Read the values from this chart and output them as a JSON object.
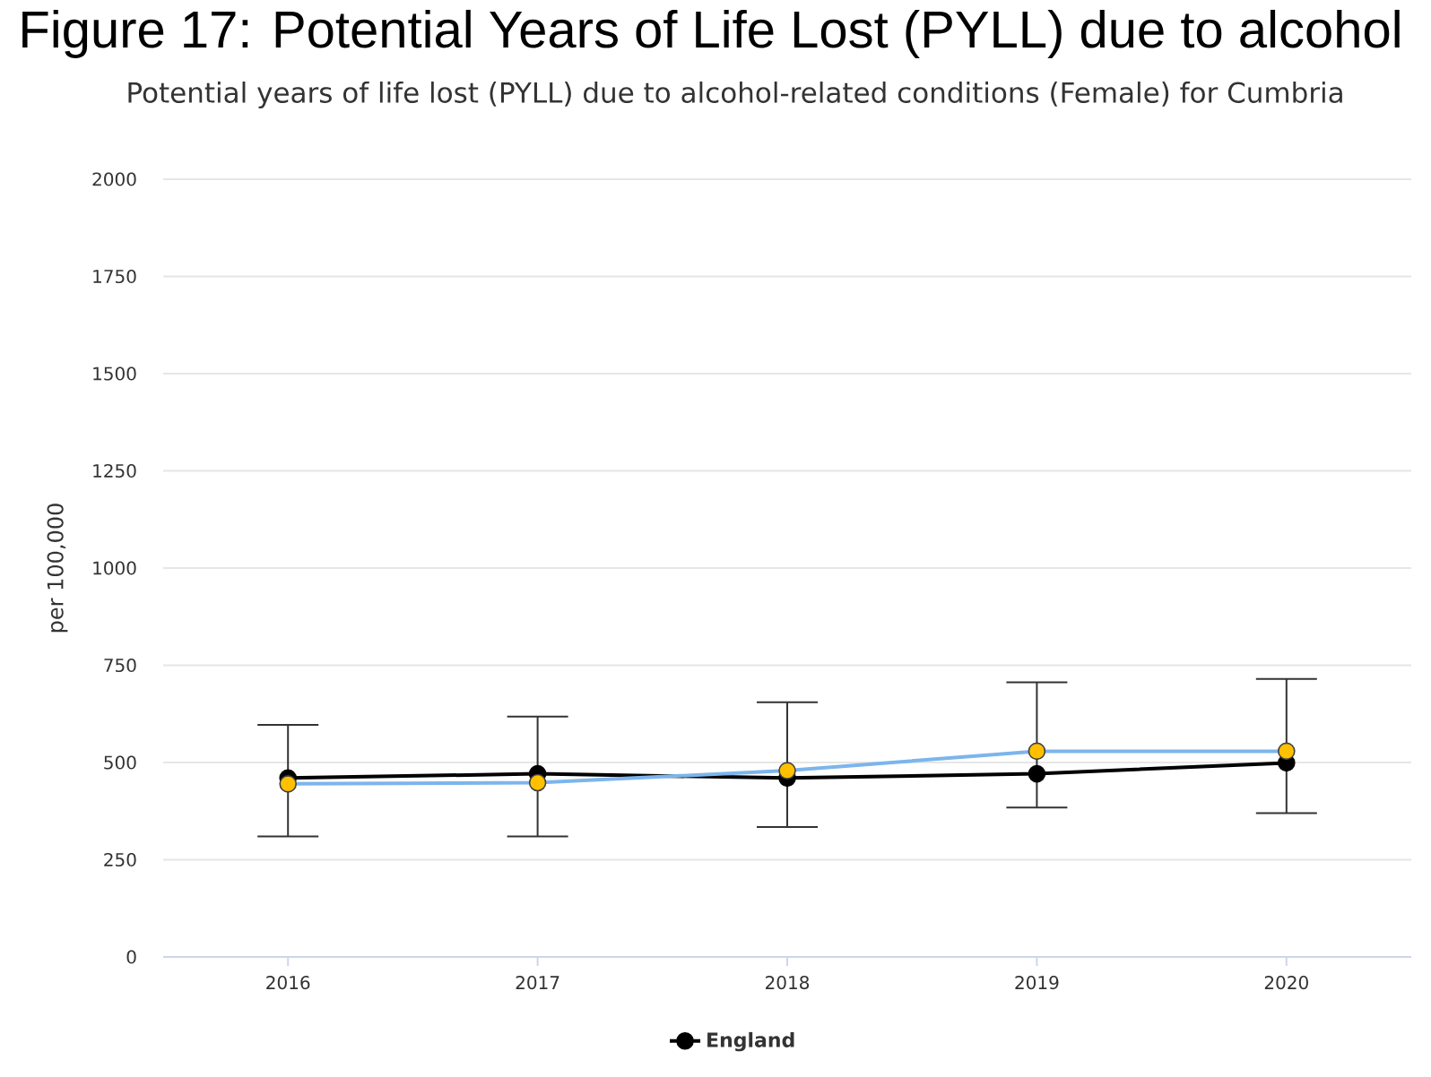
{
  "chart_data": {
    "type": "line",
    "title": "Figure 17: Potential Years of Life Lost (PYLL) due to alcohol",
    "subtitle": "Potential years of life lost (PYLL) due to alcohol-related conditions (Female) for Cumbria",
    "ylabel": "per 100,000",
    "categories": [
      "2016",
      "2017",
      "2018",
      "2019",
      "2020"
    ],
    "series": [
      {
        "name": "England",
        "color": "#000000",
        "values": [
          460,
          471,
          460,
          471,
          499
        ]
      },
      {
        "color": "#7cb5ec",
        "colors": [
          "#ffc000",
          "#ffc000",
          "#ffc000",
          "#ffc000",
          "#ffc000"
        ],
        "values": [
          445,
          448,
          479,
          529,
          529
        ],
        "errors": [
          [
            310,
            597
          ],
          [
            310,
            618
          ],
          [
            334,
            655
          ],
          [
            384,
            706
          ],
          [
            370,
            715
          ]
        ]
      }
    ],
    "ylim": [
      0,
      2000
    ],
    "yticks": [
      0,
      250,
      500,
      750,
      1000,
      1250,
      1500,
      1750,
      2000
    ],
    "grid": "y",
    "legend": "bottom",
    "marker": "circle"
  }
}
